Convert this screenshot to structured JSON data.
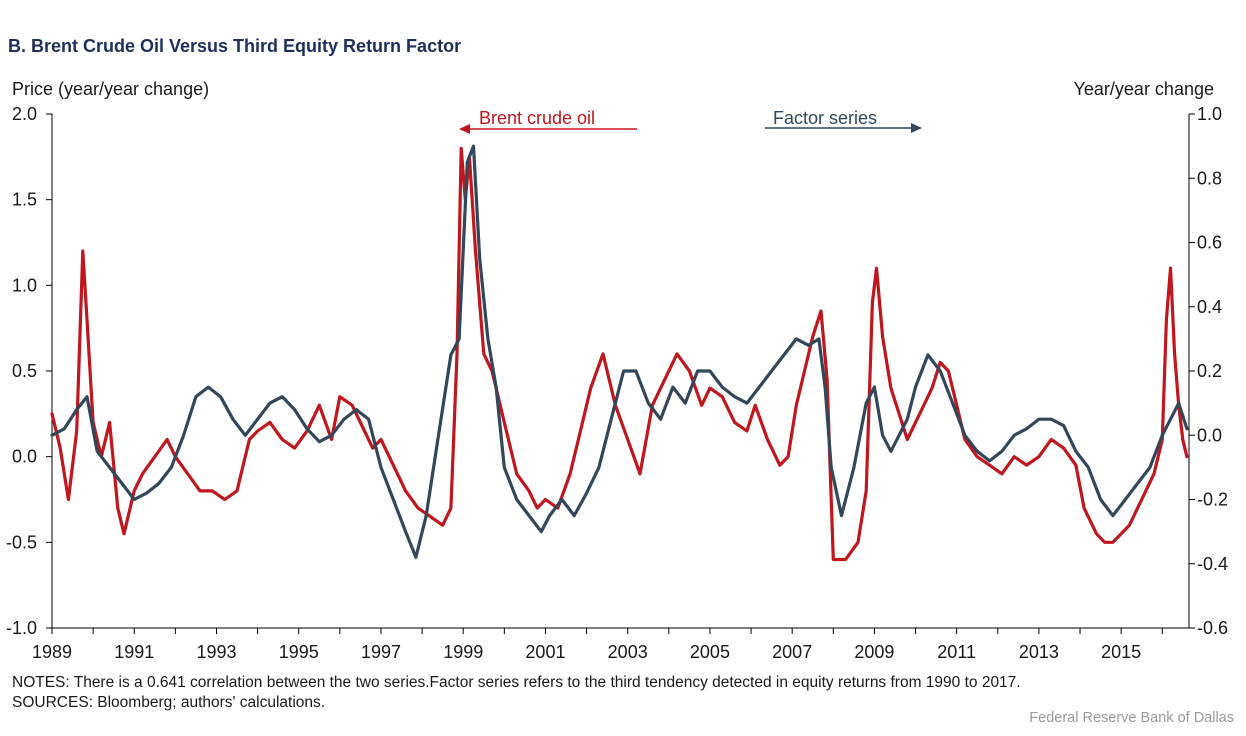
{
  "page": {
    "title": "B. Brent Crude Oil Versus Third Equity Return Factor",
    "notes": "NOTES: There is a 0.641 correlation between the two series.Factor series refers to the third tendency detected in equity returns from 1990 to 2017.",
    "sources": "SOURCES: Bloomberg; authors' calculations.",
    "credit": "Federal Reserve  Bank of Dallas"
  },
  "colors": {
    "brent": "#c0161d",
    "factor": "#33475b",
    "axis": "#000000"
  },
  "chart_data": {
    "type": "line",
    "title": "B. Brent Crude Oil Versus Third Equity Return Factor",
    "xlabel": "",
    "ylabel": "Price (year/year change)",
    "y2label": "Year/year change",
    "xlim": [
      1989,
      2016.65
    ],
    "ylim": [
      -1.0,
      2.0
    ],
    "y2lim": [
      -0.6,
      1.0
    ],
    "x_ticks": [
      1989,
      1991,
      1993,
      1995,
      1997,
      1999,
      2001,
      2003,
      2005,
      2007,
      2009,
      2011,
      2013,
      2015
    ],
    "y_ticks": [
      "-1.0",
      "-0.5",
      "0.0",
      "0.5",
      "1.0",
      "1.5",
      "2.0"
    ],
    "y2_ticks": [
      "-0.6",
      "-0.4",
      "-0.2",
      "0.0",
      "0.2",
      "0.4",
      "0.6",
      "0.8",
      "1.0"
    ],
    "grid": false,
    "legend": "in-plot labels with arrows (left axis / right axis)",
    "series": [
      {
        "name": "Brent crude oil",
        "axis": "left",
        "arrow": "left",
        "x": [
          1989.0,
          1989.2,
          1989.4,
          1989.6,
          1989.75,
          1989.85,
          1990.0,
          1990.2,
          1990.4,
          1990.6,
          1990.75,
          1991.0,
          1991.2,
          1991.5,
          1991.8,
          1992.0,
          1992.3,
          1992.6,
          1992.9,
          1993.2,
          1993.5,
          1993.8,
          1994.0,
          1994.3,
          1994.6,
          1994.9,
          1995.2,
          1995.5,
          1995.8,
          1996.0,
          1996.3,
          1996.6,
          1996.8,
          1997.0,
          1997.3,
          1997.6,
          1997.9,
          1998.2,
          1998.5,
          1998.7,
          1998.85,
          1998.95,
          1999.05,
          1999.15,
          1999.3,
          1999.5,
          1999.7,
          2000.0,
          2000.3,
          2000.6,
          2000.8,
          2001.0,
          2001.3,
          2001.6,
          2001.9,
          2002.1,
          2002.4,
          2002.7,
          2003.0,
          2003.3,
          2003.6,
          2003.9,
          2004.2,
          2004.5,
          2004.8,
          2005.0,
          2005.3,
          2005.6,
          2005.9,
          2006.1,
          2006.4,
          2006.7,
          2006.9,
          2007.1,
          2007.3,
          2007.5,
          2007.7,
          2007.85,
          2008.0,
          2008.3,
          2008.6,
          2008.8,
          2008.95,
          2009.05,
          2009.2,
          2009.4,
          2009.6,
          2009.8,
          2010.0,
          2010.2,
          2010.4,
          2010.6,
          2010.8,
          2011.0,
          2011.2,
          2011.5,
          2011.8,
          2012.1,
          2012.4,
          2012.7,
          2013.0,
          2013.3,
          2013.6,
          2013.9,
          2014.1,
          2014.4,
          2014.6,
          2014.8,
          2015.0,
          2015.2,
          2015.4,
          2015.6,
          2015.8,
          2016.0,
          2016.1,
          2016.2,
          2016.3,
          2016.4,
          2016.5,
          2016.6
        ],
        "values": [
          0.25,
          0.05,
          -0.25,
          0.15,
          1.2,
          0.8,
          0.2,
          0.0,
          0.2,
          -0.3,
          -0.45,
          -0.2,
          -0.1,
          0.0,
          0.1,
          0.0,
          -0.1,
          -0.2,
          -0.2,
          -0.25,
          -0.2,
          0.1,
          0.15,
          0.2,
          0.1,
          0.05,
          0.15,
          0.3,
          0.1,
          0.35,
          0.3,
          0.15,
          0.05,
          0.1,
          -0.05,
          -0.2,
          -0.3,
          -0.35,
          -0.4,
          -0.3,
          0.6,
          1.8,
          1.5,
          1.75,
          1.2,
          0.6,
          0.5,
          0.2,
          -0.1,
          -0.2,
          -0.3,
          -0.25,
          -0.3,
          -0.1,
          0.2,
          0.4,
          0.6,
          0.3,
          0.1,
          -0.1,
          0.3,
          0.45,
          0.6,
          0.5,
          0.3,
          0.4,
          0.35,
          0.2,
          0.15,
          0.3,
          0.1,
          -0.05,
          0.0,
          0.3,
          0.5,
          0.7,
          0.85,
          0.45,
          -0.6,
          -0.6,
          -0.5,
          -0.2,
          0.9,
          1.1,
          0.7,
          0.4,
          0.25,
          0.1,
          0.2,
          0.3,
          0.4,
          0.55,
          0.5,
          0.3,
          0.1,
          0.0,
          -0.05,
          -0.1,
          0.0,
          -0.05,
          0.0,
          0.1,
          0.05,
          -0.05,
          -0.3,
          -0.45,
          -0.5,
          -0.5,
          -0.45,
          -0.4,
          -0.3,
          -0.2,
          -0.1,
          0.1,
          0.8,
          1.1,
          0.6,
          0.3,
          0.1,
          0.0
        ]
      },
      {
        "name": "Factor series",
        "axis": "right",
        "arrow": "right",
        "x": [
          1989.0,
          1989.3,
          1989.6,
          1989.85,
          1990.1,
          1990.4,
          1990.7,
          1991.0,
          1991.3,
          1991.6,
          1991.9,
          1992.2,
          1992.5,
          1992.8,
          1993.1,
          1993.4,
          1993.7,
          1994.0,
          1994.3,
          1994.6,
          1994.9,
          1995.2,
          1995.5,
          1995.8,
          1996.1,
          1996.4,
          1996.7,
          1997.0,
          1997.3,
          1997.6,
          1997.85,
          1998.1,
          1998.4,
          1998.7,
          1998.9,
          1999.1,
          1999.25,
          1999.4,
          1999.6,
          1999.8,
          2000.0,
          2000.3,
          2000.6,
          2000.9,
          2001.1,
          2001.4,
          2001.7,
          2002.0,
          2002.3,
          2002.6,
          2002.9,
          2003.2,
          2003.5,
          2003.8,
          2004.1,
          2004.4,
          2004.7,
          2005.0,
          2005.3,
          2005.6,
          2005.9,
          2006.2,
          2006.5,
          2006.8,
          2007.1,
          2007.4,
          2007.65,
          2007.8,
          2007.95,
          2008.2,
          2008.5,
          2008.8,
          2009.0,
          2009.2,
          2009.4,
          2009.6,
          2009.8,
          2010.0,
          2010.3,
          2010.6,
          2010.9,
          2011.2,
          2011.5,
          2011.8,
          2012.1,
          2012.4,
          2012.7,
          2013.0,
          2013.3,
          2013.6,
          2013.9,
          2014.2,
          2014.5,
          2014.8,
          2015.1,
          2015.4,
          2015.7,
          2016.0,
          2016.2,
          2016.4,
          2016.6
        ],
        "values": [
          0.0,
          0.02,
          0.08,
          0.12,
          -0.05,
          -0.1,
          -0.15,
          -0.2,
          -0.18,
          -0.15,
          -0.1,
          0.0,
          0.12,
          0.15,
          0.12,
          0.05,
          0.0,
          0.05,
          0.1,
          0.12,
          0.08,
          0.02,
          -0.02,
          0.0,
          0.05,
          0.08,
          0.05,
          -0.1,
          -0.2,
          -0.3,
          -0.38,
          -0.25,
          0.0,
          0.25,
          0.3,
          0.85,
          0.9,
          0.55,
          0.3,
          0.15,
          -0.1,
          -0.2,
          -0.25,
          -0.3,
          -0.25,
          -0.2,
          -0.25,
          -0.18,
          -0.1,
          0.05,
          0.2,
          0.2,
          0.1,
          0.05,
          0.15,
          0.1,
          0.2,
          0.2,
          0.15,
          0.12,
          0.1,
          0.15,
          0.2,
          0.25,
          0.3,
          0.28,
          0.3,
          0.15,
          -0.1,
          -0.25,
          -0.1,
          0.1,
          0.15,
          0.0,
          -0.05,
          0.0,
          0.05,
          0.15,
          0.25,
          0.2,
          0.1,
          0.0,
          -0.05,
          -0.08,
          -0.05,
          0.0,
          0.02,
          0.05,
          0.05,
          0.03,
          -0.05,
          -0.1,
          -0.2,
          -0.25,
          -0.2,
          -0.15,
          -0.1,
          0.0,
          0.05,
          0.1,
          0.02
        ]
      }
    ]
  }
}
